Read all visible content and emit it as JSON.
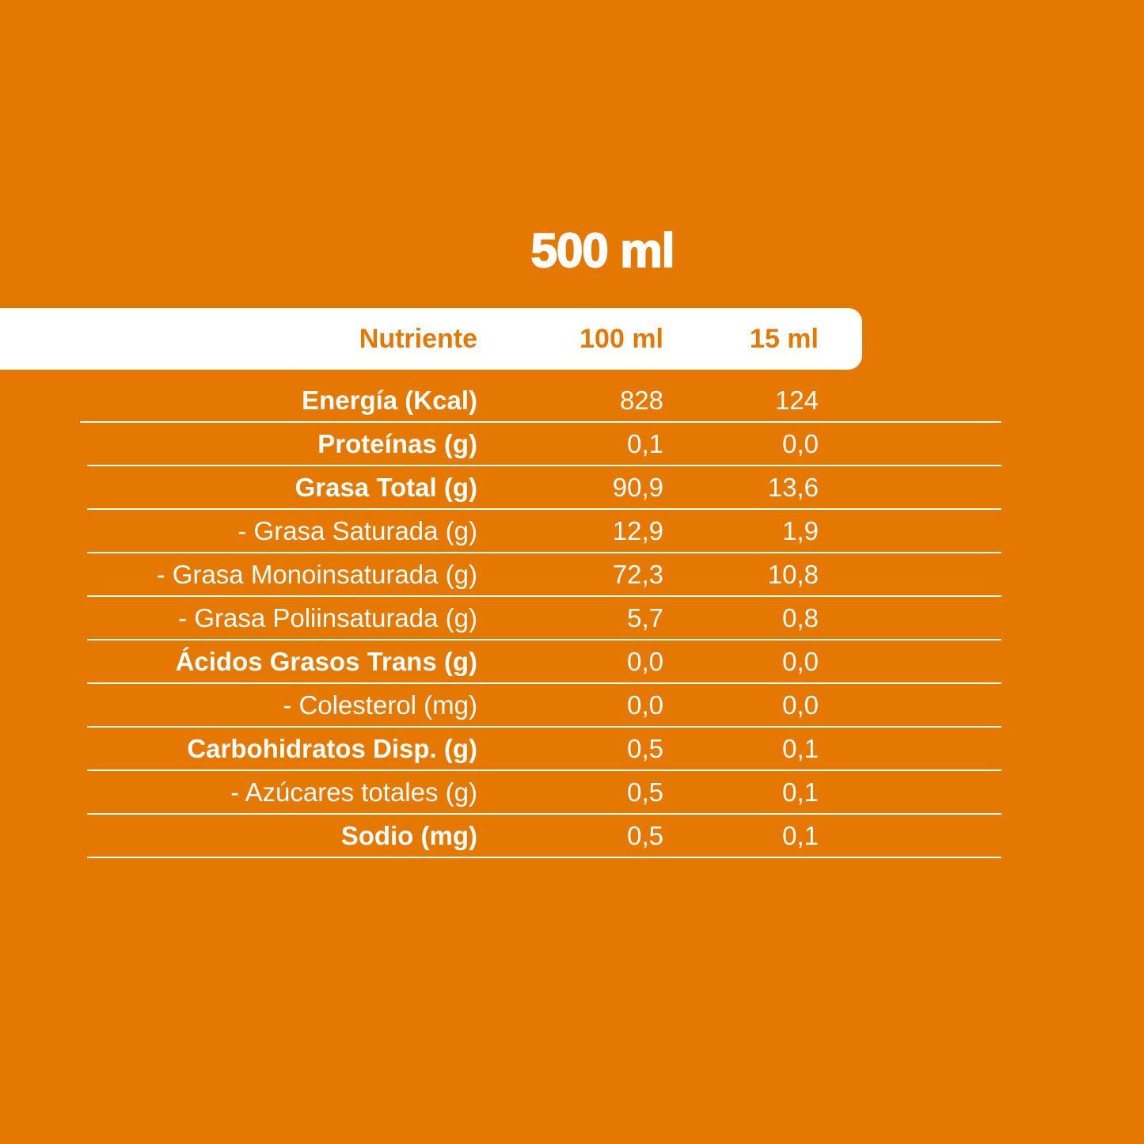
{
  "title": "500 ml",
  "header": {
    "nutrient": "Nutriente",
    "col1": "100 ml",
    "col2": "15 ml"
  },
  "colors": {
    "background": "#E47800",
    "header_bg": "#FFFFFF",
    "text": "#FFFFFF"
  },
  "rows": [
    {
      "label": "Energía (Kcal)",
      "v100": "828",
      "v15": "124",
      "bold": true
    },
    {
      "label": "Proteínas (g)",
      "v100": "0,1",
      "v15": "0,0",
      "bold": true
    },
    {
      "label": "Grasa Total (g)",
      "v100": "90,9",
      "v15": "13,6",
      "bold": true
    },
    {
      "label": "- Grasa Saturada (g)",
      "v100": "12,9",
      "v15": "1,9",
      "bold": false
    },
    {
      "label": "- Grasa Monoinsaturada (g)",
      "v100": "72,3",
      "v15": "10,8",
      "bold": false
    },
    {
      "label": "- Grasa Poliinsaturada (g)",
      "v100": "5,7",
      "v15": "0,8",
      "bold": false
    },
    {
      "label": "Ácidos Grasos Trans (g)",
      "v100": "0,0",
      "v15": "0,0",
      "bold": true
    },
    {
      "label": "- Colesterol (mg)",
      "v100": "0,0",
      "v15": "0,0",
      "bold": false
    },
    {
      "label": "Carbohidratos Disp. (g)",
      "v100": "0,5",
      "v15": "0,1",
      "bold": true
    },
    {
      "label": "- Azúcares totales (g)",
      "v100": "0,5",
      "v15": "0,1",
      "bold": false
    },
    {
      "label": "Sodio (mg)",
      "v100": "0,5",
      "v15": "0,1",
      "bold": true
    }
  ]
}
